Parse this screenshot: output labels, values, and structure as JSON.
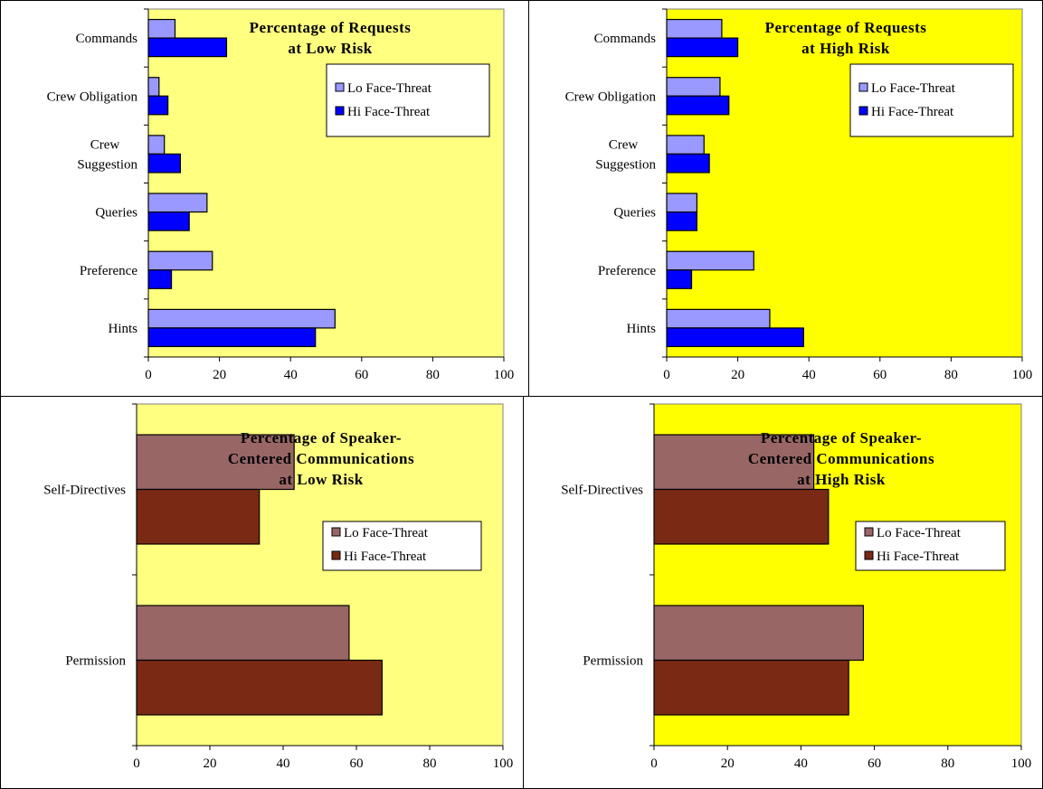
{
  "chart_data": [
    {
      "type": "bar",
      "orientation": "horizontal",
      "title": [
        "Percentage of Requests",
        "at Low Risk"
      ],
      "categories": [
        [
          "Commands"
        ],
        [
          "Crew Obligation"
        ],
        [
          "Crew",
          "Suggestion"
        ],
        [
          "Queries"
        ],
        [
          "Preference"
        ],
        [
          "Hints"
        ]
      ],
      "series": [
        {
          "name": "Lo Face-Threat",
          "color": "#9999ff",
          "values": [
            7.5,
            3,
            4.5,
            16.5,
            18,
            52.5
          ]
        },
        {
          "name": "Hi Face-Threat",
          "color": "#0000ff",
          "values": [
            22,
            5.5,
            9,
            11.5,
            6.5,
            47
          ]
        }
      ],
      "xlim": [
        0,
        100
      ],
      "xticks": [
        0,
        20,
        40,
        60,
        80,
        100
      ],
      "plot_bg": "#ffff80",
      "legend": "top-right"
    },
    {
      "type": "bar",
      "orientation": "horizontal",
      "title": [
        "Percentage of Requests",
        "at High Risk"
      ],
      "categories": [
        [
          "Commands"
        ],
        [
          "Crew Obligation"
        ],
        [
          "Crew",
          "Suggestion"
        ],
        [
          "Queries"
        ],
        [
          "Preference"
        ],
        [
          "Hints"
        ]
      ],
      "series": [
        {
          "name": "Lo Face-Threat",
          "color": "#9999ff",
          "values": [
            15.5,
            15,
            10.5,
            8.5,
            24.5,
            29
          ]
        },
        {
          "name": "Hi Face-Threat",
          "color": "#0000ff",
          "values": [
            20,
            17.5,
            12,
            8.5,
            7,
            38.5
          ]
        }
      ],
      "xlim": [
        0,
        100
      ],
      "xticks": [
        0,
        20,
        40,
        60,
        80,
        100
      ],
      "plot_bg": "#ffff00",
      "legend": "top-right"
    },
    {
      "type": "bar",
      "orientation": "horizontal",
      "title": [
        "Percentage of Speaker-",
        "Centered Communications",
        "at Low Risk"
      ],
      "categories": [
        [
          "Self-Directives"
        ],
        [
          "Permission"
        ]
      ],
      "series": [
        {
          "name": "Lo Face-Threat",
          "color": "#996666",
          "values": [
            43,
            58
          ]
        },
        {
          "name": "Hi Face-Threat",
          "color": "#7a2a14",
          "values": [
            33.5,
            67
          ]
        }
      ],
      "xlim": [
        0,
        100
      ],
      "xticks": [
        0,
        20,
        40,
        60,
        80,
        100
      ],
      "plot_bg": "#ffff80",
      "legend": "top-right"
    },
    {
      "type": "bar",
      "orientation": "horizontal",
      "title": [
        "Percentage of Speaker-",
        "Centered Communications",
        "at High Risk"
      ],
      "categories": [
        [
          "Self-Directives"
        ],
        [
          "Permission"
        ]
      ],
      "series": [
        {
          "name": "Lo Face-Threat",
          "color": "#996666",
          "values": [
            43.5,
            57
          ]
        },
        {
          "name": "Hi Face-Threat",
          "color": "#7a2a14",
          "values": [
            47.5,
            53
          ]
        }
      ],
      "xlim": [
        0,
        100
      ],
      "xticks": [
        0,
        20,
        40,
        60,
        80,
        100
      ],
      "plot_bg": "#ffff00",
      "legend": "top-right"
    }
  ]
}
